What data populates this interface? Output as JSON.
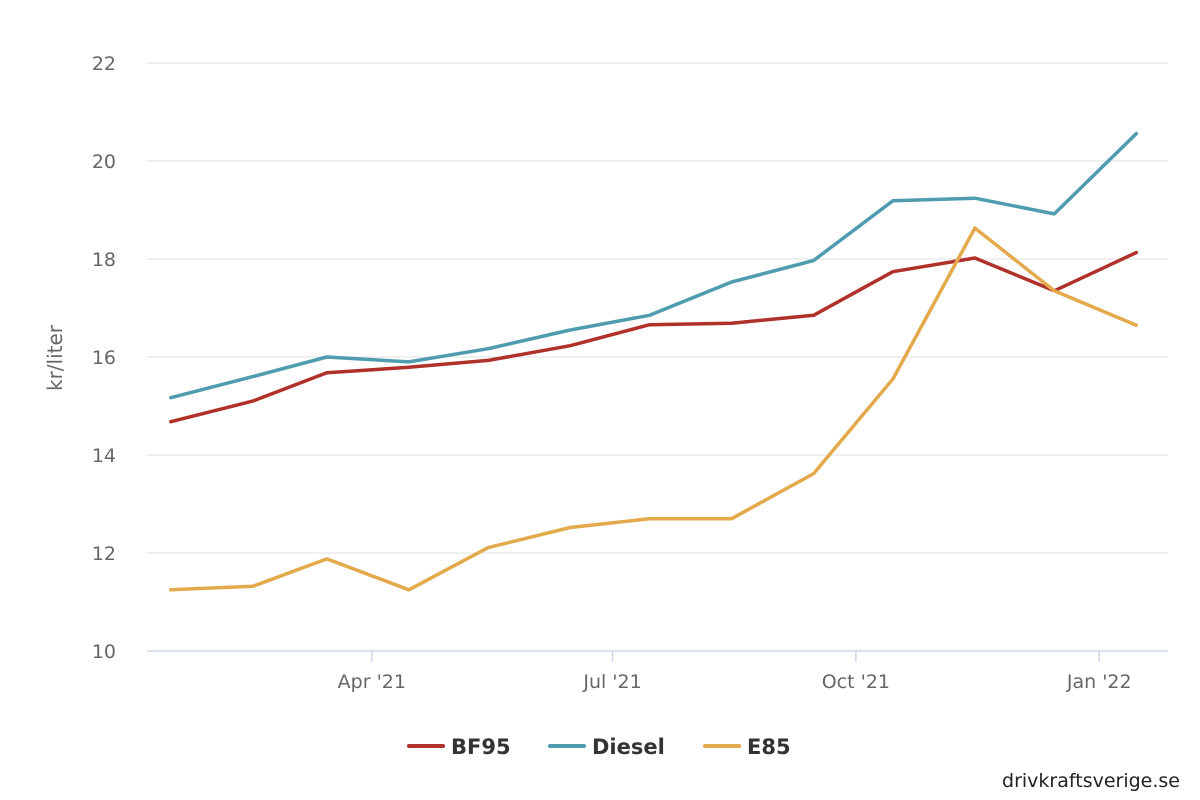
{
  "chart_data": {
    "type": "line",
    "ylabel": "kr/liter",
    "ylim": [
      10,
      22
    ],
    "yticks": [
      10,
      12,
      14,
      16,
      18,
      20,
      22
    ],
    "xlim": [
      "2021-01-06",
      "2022-01-27"
    ],
    "xticks": [
      {
        "date": "2021-04-01",
        "label": "Apr '21"
      },
      {
        "date": "2021-07-01",
        "label": "Jul '21"
      },
      {
        "date": "2021-10-01",
        "label": "Oct '21"
      },
      {
        "date": "2022-01-01",
        "label": "Jan '22"
      }
    ],
    "x": [
      "2021-01-15",
      "2021-02-15",
      "2021-03-15",
      "2021-04-15",
      "2021-05-15",
      "2021-06-15",
      "2021-07-15",
      "2021-08-15",
      "2021-09-15",
      "2021-10-15",
      "2021-11-15",
      "2021-12-15",
      "2022-01-15"
    ],
    "series": [
      {
        "name": "BF95",
        "color": "#b0302a",
        "values": [
          14.68,
          15.1,
          15.68,
          15.79,
          15.93,
          16.23,
          16.66,
          16.69,
          16.85,
          17.74,
          18.02,
          17.35,
          18.13
        ]
      },
      {
        "name": "Diesel",
        "color": "#4f9cb0",
        "values": [
          15.17,
          15.6,
          16.0,
          15.9,
          16.17,
          16.55,
          16.85,
          17.53,
          17.97,
          19.19,
          19.24,
          18.92,
          20.56
        ]
      },
      {
        "name": "E85",
        "color": "#e3a94a",
        "values": [
          11.25,
          11.32,
          11.88,
          11.25,
          12.11,
          12.52,
          12.7,
          12.7,
          13.62,
          15.55,
          18.63,
          17.35,
          16.65
        ]
      }
    ],
    "grid": true,
    "legend": "bottom-center"
  },
  "source": "drivkraftsverige.se"
}
